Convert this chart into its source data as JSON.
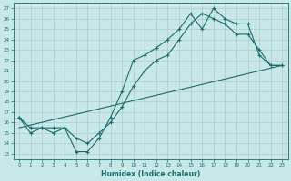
{
  "xlabel": "Humidex (Indice chaleur)",
  "xlim": [
    -0.5,
    23.5
  ],
  "ylim": [
    12.5,
    27.5
  ],
  "xticks": [
    0,
    1,
    2,
    3,
    4,
    5,
    6,
    7,
    8,
    9,
    10,
    11,
    12,
    13,
    14,
    15,
    16,
    17,
    18,
    19,
    20,
    21,
    22,
    23
  ],
  "yticks": [
    13,
    14,
    15,
    16,
    17,
    18,
    19,
    20,
    21,
    22,
    23,
    24,
    25,
    26,
    27
  ],
  "bg_color": "#c8e8e8",
  "line_color": "#1a6b6b",
  "grid_color": "#b0d0d0",
  "line1_x": [
    0,
    1,
    2,
    3,
    4,
    5,
    6,
    7,
    8,
    9,
    10,
    11,
    12,
    13,
    14,
    15,
    16,
    17,
    18,
    19,
    20,
    21,
    22,
    23
  ],
  "line1_y": [
    16.5,
    15.0,
    15.5,
    15.0,
    15.5,
    13.2,
    13.2,
    14.5,
    16.5,
    19.0,
    22.0,
    22.5,
    23.2,
    24.0,
    25.0,
    26.5,
    25.0,
    27.0,
    26.0,
    25.5,
    25.5,
    22.5,
    21.5,
    21.5
  ],
  "line2_x": [
    0,
    1,
    2,
    3,
    4,
    5,
    6,
    7,
    8,
    9,
    10,
    11,
    12,
    13,
    14,
    15,
    16,
    17,
    18,
    19,
    20,
    21,
    22,
    23
  ],
  "line2_y": [
    16.5,
    15.5,
    15.5,
    15.5,
    15.5,
    14.5,
    14.0,
    15.0,
    16.0,
    17.5,
    19.5,
    21.0,
    22.0,
    22.5,
    24.0,
    25.5,
    26.5,
    26.0,
    25.5,
    24.5,
    24.5,
    23.0,
    21.5,
    21.5
  ],
  "line3_x": [
    0,
    23
  ],
  "line3_y": [
    15.5,
    21.5
  ]
}
